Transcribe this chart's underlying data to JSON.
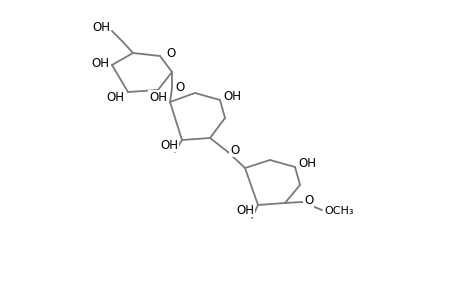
{
  "bg_color": "#ffffff",
  "line_color": "#7a7a7a",
  "text_color": "#000000",
  "line_width": 1.3,
  "font_size": 8.5,
  "figsize": [
    4.6,
    3.0
  ],
  "dpi": 100,
  "xlim": [
    0,
    460
  ],
  "ylim": [
    0,
    300
  ]
}
